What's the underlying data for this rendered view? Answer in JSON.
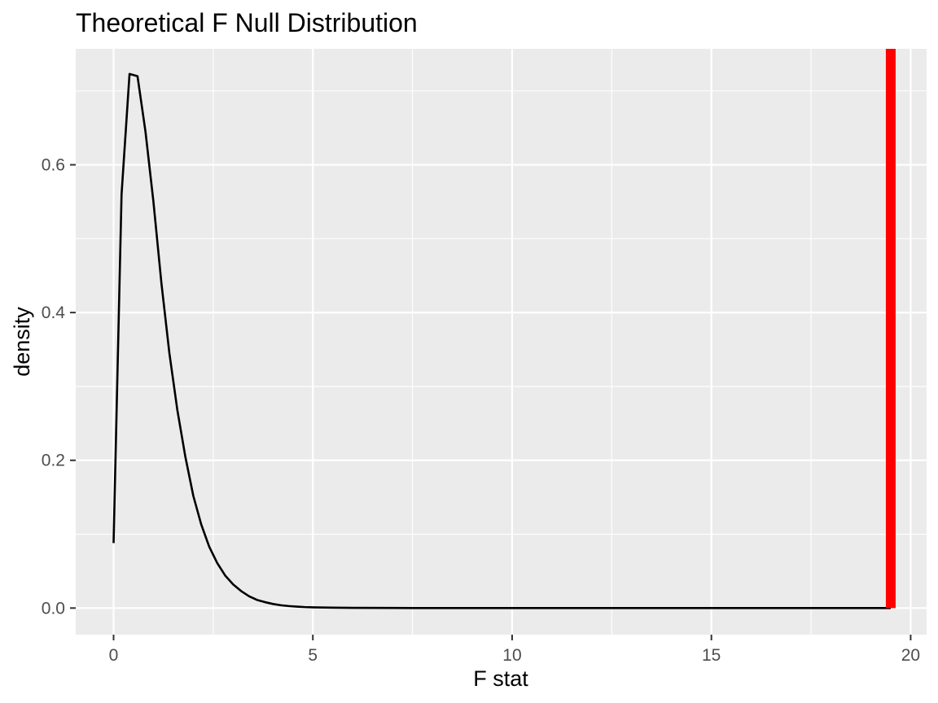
{
  "chart_data": {
    "type": "line",
    "title": "Theoretical F Null Distribution",
    "xlabel": "F stat",
    "ylabel": "density",
    "xlim": [
      -0.95,
      20.4
    ],
    "ylim": [
      -0.036,
      0.757
    ],
    "x_ticks": [
      0,
      5,
      10,
      15,
      20
    ],
    "x_tick_labels": [
      "0",
      "5",
      "10",
      "15",
      "20"
    ],
    "y_ticks": [
      0.0,
      0.2,
      0.4,
      0.6
    ],
    "y_tick_labels": [
      "0.0",
      "0.2",
      "0.4",
      "0.6"
    ],
    "grid": true,
    "legend": "none",
    "series": [
      {
        "color": "#000000",
        "x": [
          0.0,
          0.2,
          0.4,
          0.6,
          0.8,
          1.0,
          1.2,
          1.4,
          1.6,
          1.8,
          2.0,
          2.2,
          2.4,
          2.6,
          2.8,
          3.0,
          3.2,
          3.4,
          3.6,
          3.8,
          4.0,
          4.2,
          4.4,
          4.6,
          4.8,
          5.0,
          5.5,
          6.0,
          7.0,
          8.0,
          10.0,
          12.0,
          14.0,
          16.0,
          18.0,
          19.5
        ],
        "y": [
          0.088,
          0.56,
          0.723,
          0.72,
          0.645,
          0.55,
          0.44,
          0.345,
          0.268,
          0.205,
          0.152,
          0.113,
          0.083,
          0.061,
          0.044,
          0.032,
          0.023,
          0.016,
          0.011,
          0.008,
          0.0055,
          0.0038,
          0.0027,
          0.0019,
          0.0013,
          0.001,
          0.0005,
          0.0003,
          0.0001,
          0.0,
          0.0,
          0.0,
          0.0,
          0.0,
          0.0,
          0.0
        ]
      }
    ],
    "vline": {
      "x": 19.5,
      "color": "#ff0000"
    },
    "colors": {
      "panel": "#ebebeb",
      "grid": "#ffffff",
      "line": "#000000",
      "vline": "#ff0000"
    }
  }
}
